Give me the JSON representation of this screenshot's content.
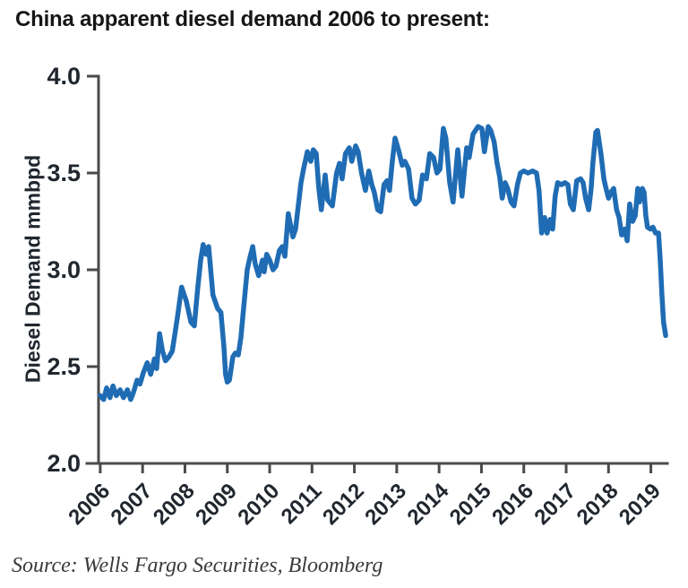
{
  "header": {
    "title": "China apparent diesel demand 2006 to present:"
  },
  "footer": {
    "source": "Source: Wells Fargo Securities, Bloomberg"
  },
  "colors": {
    "line": "#1F6CB4",
    "axis": "#4a4a4a",
    "text": "#21272f",
    "background": "#ffffff"
  },
  "chart_data": {
    "type": "line",
    "title": "China apparent diesel demand 2006 to present:",
    "xlabel": "",
    "ylabel": "Diesel Demand mmbpd",
    "ylim": [
      2.0,
      4.0
    ],
    "xlim": [
      2005.96,
      2019.39
    ],
    "grid": false,
    "legend": null,
    "line_color": "#1F6CB4",
    "axis_color": "#4a4a4a",
    "ytick_values": [
      2.0,
      2.5,
      3.0,
      3.5,
      4.0
    ],
    "ytick_labels": [
      "2.0",
      "2.5",
      "3.0",
      "3.5",
      "4.0"
    ],
    "xtick_values": [
      2006,
      2007,
      2008,
      2009,
      2010,
      2011,
      2012,
      2013,
      2014,
      2015,
      2016,
      2017,
      2018,
      2019
    ],
    "xtick_labels": [
      "2006",
      "2007",
      "2008",
      "2009",
      "2010",
      "2011",
      "2012",
      "2013",
      "2014",
      "2015",
      "2016",
      "2017",
      "2018",
      "2019"
    ],
    "series": [
      {
        "name": "China apparent diesel demand (mmbpd)",
        "x": [
          2006.0,
          2006.08,
          2006.15,
          2006.23,
          2006.3,
          2006.38,
          2006.47,
          2006.55,
          2006.64,
          2006.72,
          2006.79,
          2006.87,
          2006.94,
          2007.02,
          2007.11,
          2007.19,
          2007.28,
          2007.33,
          2007.4,
          2007.47,
          2007.54,
          2007.62,
          2007.7,
          2007.82,
          2007.92,
          2008.03,
          2008.14,
          2008.22,
          2008.3,
          2008.37,
          2008.43,
          2008.5,
          2008.56,
          2008.66,
          2008.77,
          2008.85,
          2008.92,
          2008.96,
          2009.0,
          2009.05,
          2009.13,
          2009.19,
          2009.26,
          2009.32,
          2009.4,
          2009.47,
          2009.53,
          2009.6,
          2009.66,
          2009.74,
          2009.83,
          2009.87,
          2009.93,
          2010.0,
          2010.08,
          2010.15,
          2010.23,
          2010.3,
          2010.36,
          2010.44,
          2010.55,
          2010.61,
          2010.74,
          2010.8,
          2010.89,
          2010.97,
          2011.03,
          2011.1,
          2011.16,
          2011.22,
          2011.31,
          2011.37,
          2011.48,
          2011.58,
          2011.65,
          2011.71,
          2011.79,
          2011.88,
          2011.94,
          2012.03,
          2012.09,
          2012.17,
          2012.26,
          2012.34,
          2012.41,
          2012.47,
          2012.55,
          2012.62,
          2012.7,
          2012.77,
          2012.83,
          2012.89,
          2012.96,
          2013.04,
          2013.13,
          2013.19,
          2013.28,
          2013.36,
          2013.44,
          2013.53,
          2013.61,
          2013.7,
          2013.78,
          2013.87,
          2013.95,
          2014.02,
          2014.1,
          2014.16,
          2014.25,
          2014.33,
          2014.44,
          2014.54,
          2014.65,
          2014.71,
          2014.8,
          2014.86,
          2014.92,
          2015.01,
          2015.07,
          2015.16,
          2015.22,
          2015.3,
          2015.37,
          2015.43,
          2015.49,
          2015.56,
          2015.62,
          2015.7,
          2015.77,
          2015.85,
          2015.92,
          2016.0,
          2016.1,
          2016.21,
          2016.3,
          2016.36,
          2016.42,
          2016.49,
          2016.55,
          2016.62,
          2016.68,
          2016.74,
          2016.8,
          2016.89,
          2016.97,
          2017.04,
          2017.1,
          2017.17,
          2017.25,
          2017.34,
          2017.4,
          2017.46,
          2017.53,
          2017.59,
          2017.63,
          2017.7,
          2017.74,
          2017.82,
          2017.89,
          2017.93,
          2018.0,
          2018.06,
          2018.12,
          2018.19,
          2018.25,
          2018.31,
          2018.38,
          2018.44,
          2018.5,
          2018.57,
          2018.63,
          2018.69,
          2018.73,
          2018.8,
          2018.84,
          2018.88,
          2018.92,
          2018.99,
          2019.05,
          2019.11,
          2019.18,
          2019.22,
          2019.26,
          2019.3,
          2019.35
        ],
        "y": [
          2.35,
          2.33,
          2.39,
          2.34,
          2.4,
          2.35,
          2.38,
          2.34,
          2.38,
          2.33,
          2.37,
          2.43,
          2.41,
          2.47,
          2.52,
          2.46,
          2.54,
          2.49,
          2.67,
          2.58,
          2.53,
          2.55,
          2.58,
          2.75,
          2.91,
          2.84,
          2.73,
          2.71,
          2.9,
          3.05,
          3.13,
          3.08,
          3.12,
          2.87,
          2.8,
          2.78,
          2.6,
          2.46,
          2.42,
          2.43,
          2.55,
          2.57,
          2.56,
          2.65,
          2.84,
          3.0,
          3.06,
          3.12,
          3.03,
          2.97,
          3.05,
          2.99,
          3.08,
          3.05,
          3.0,
          3.02,
          3.1,
          3.12,
          3.07,
          3.29,
          3.17,
          3.21,
          3.45,
          3.52,
          3.61,
          3.56,
          3.62,
          3.6,
          3.42,
          3.31,
          3.49,
          3.36,
          3.33,
          3.5,
          3.55,
          3.47,
          3.6,
          3.63,
          3.56,
          3.64,
          3.61,
          3.5,
          3.41,
          3.51,
          3.44,
          3.4,
          3.31,
          3.3,
          3.44,
          3.46,
          3.41,
          3.55,
          3.68,
          3.62,
          3.54,
          3.56,
          3.52,
          3.37,
          3.34,
          3.36,
          3.49,
          3.47,
          3.6,
          3.58,
          3.5,
          3.52,
          3.73,
          3.68,
          3.45,
          3.35,
          3.62,
          3.38,
          3.63,
          3.58,
          3.7,
          3.72,
          3.74,
          3.73,
          3.61,
          3.74,
          3.72,
          3.66,
          3.55,
          3.48,
          3.37,
          3.45,
          3.42,
          3.35,
          3.33,
          3.44,
          3.5,
          3.51,
          3.5,
          3.51,
          3.5,
          3.41,
          3.19,
          3.27,
          3.19,
          3.26,
          3.21,
          3.38,
          3.45,
          3.44,
          3.45,
          3.44,
          3.34,
          3.31,
          3.46,
          3.47,
          3.45,
          3.37,
          3.31,
          3.42,
          3.55,
          3.71,
          3.72,
          3.6,
          3.47,
          3.43,
          3.37,
          3.4,
          3.42,
          3.31,
          3.27,
          3.18,
          3.21,
          3.15,
          3.34,
          3.25,
          3.28,
          3.42,
          3.35,
          3.42,
          3.4,
          3.28,
          3.22,
          3.21,
          3.22,
          3.19,
          3.19,
          3.05,
          2.87,
          2.73,
          2.66
        ]
      }
    ]
  }
}
